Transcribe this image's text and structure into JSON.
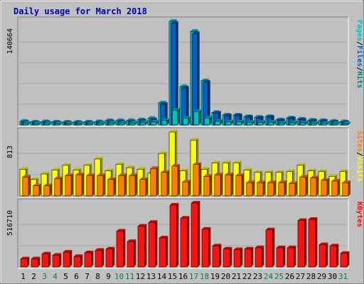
{
  "chart_data": {
    "type": "bar",
    "title": "Daily usage for March 2018",
    "categories": [
      "1",
      "2",
      "3",
      "4",
      "5",
      "6",
      "7",
      "8",
      "9",
      "10",
      "11",
      "12",
      "13",
      "14",
      "15",
      "16",
      "17",
      "18",
      "19",
      "20",
      "21",
      "22",
      "23",
      "24",
      "25",
      "26",
      "27",
      "28",
      "29",
      "30",
      "31"
    ],
    "weekend_days": [
      "3",
      "4",
      "10",
      "11",
      "17",
      "18",
      "24",
      "25",
      "31"
    ],
    "panels": [
      {
        "id": "hits-files-pages",
        "max_label": "140664",
        "ymax": 140664,
        "legend": [
          "Pages",
          "/",
          "Files",
          "/",
          "Hits"
        ],
        "legend_colors": [
          "#00c0c0",
          "#000000",
          "#0060c0",
          "#000000",
          "#008080"
        ],
        "series": [
          {
            "name": "Hits",
            "color": "#00c8d0",
            "values": [
              5000,
              4000,
              4500,
              4000,
              3800,
              3800,
              4000,
              4500,
              6000,
              6000,
              6000,
              7000,
              9000,
              30000,
              140664,
              52000,
              127000,
              60000,
              17000,
              13500,
              13500,
              11500,
              10500,
              11500,
              7000,
              9500,
              8000,
              6500,
              6000,
              5000,
              4500
            ]
          },
          {
            "name": "Files",
            "color": "#0060c0",
            "values": [
              3500,
              3000,
              3300,
              3000,
              2800,
              2800,
              3000,
              3300,
              4500,
              4500,
              4500,
              5500,
              7000,
              28000,
              138000,
              50000,
              124000,
              58000,
              16000,
              12500,
              12500,
              10500,
              9500,
              10500,
              6000,
              8500,
              7000,
              5500,
              5000,
              4000,
              3500
            ]
          },
          {
            "name": "Pages",
            "color": "#00c0c0",
            "values": [
              2000,
              1800,
              2000,
              1800,
              1600,
              1600,
              1800,
              2000,
              2500,
              2500,
              2500,
              3000,
              4000,
              6000,
              20000,
              9000,
              18000,
              9000,
              5000,
              4000,
              4000,
              3500,
              3200,
              3500,
              2500,
              3000,
              2800,
              2300,
              2100,
              1800,
              1600
            ]
          }
        ]
      },
      {
        "id": "visits-sites",
        "max_label": "813",
        "ymax": 813,
        "legend": [
          "Sites",
          "/",
          "Visits"
        ],
        "legend_colors": [
          "#ff8000",
          "#000000",
          "#ffff00"
        ],
        "series": [
          {
            "name": "Visits",
            "color": "#ffff00",
            "values": [
              340,
              210,
              280,
              330,
              390,
              330,
              390,
              470,
              320,
              400,
              360,
              340,
              290,
              540,
              813,
              320,
              710,
              340,
              420,
              420,
              420,
              330,
              300,
              300,
              300,
              310,
              390,
              320,
              310,
              250,
              310
            ]
          },
          {
            "name": "Sites",
            "color": "#ff8000",
            "values": [
              240,
              130,
              130,
              220,
              260,
              270,
              260,
              260,
              210,
              260,
              260,
              210,
              350,
              300,
              380,
              180,
              400,
              250,
              270,
              270,
              260,
              170,
              170,
              170,
              170,
              160,
              240,
              230,
              200,
              190,
              170
            ]
          }
        ]
      },
      {
        "id": "kbytes",
        "max_label": "516710",
        "ymax": 516710,
        "legend": [
          "KBytes"
        ],
        "legend_colors": [
          "#ff0000"
        ],
        "series": [
          {
            "name": "KBytes",
            "color": "#ff1010",
            "values": [
              65000,
              65000,
              105000,
              95000,
              120000,
              85000,
              115000,
              135000,
              145000,
              290000,
              205000,
              330000,
              360000,
              235000,
              500000,
              395000,
              516710,
              305000,
              170000,
              145000,
              140000,
              145000,
              155000,
              300000,
              155000,
              155000,
              375000,
              385000,
              180000,
              170000,
              110000
            ]
          }
        ]
      }
    ]
  }
}
